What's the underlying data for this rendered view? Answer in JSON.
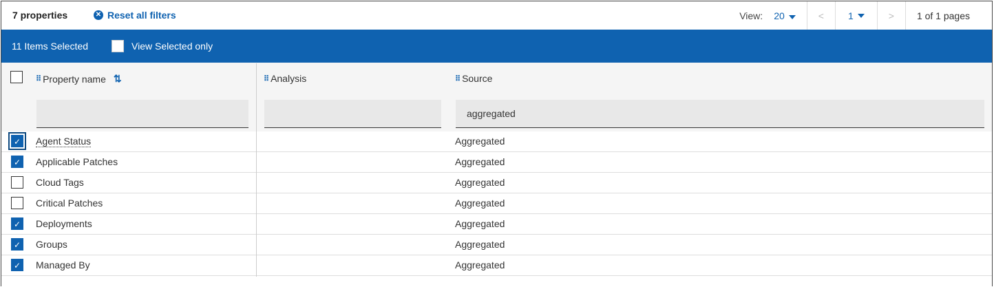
{
  "toolbar": {
    "count": "7 properties",
    "reset": "Reset all filters",
    "view_label": "View:",
    "view_value": "20",
    "page_value": "1",
    "page_info": "1 of 1 pages",
    "prev": "<",
    "next": ">"
  },
  "selection": {
    "count": "11 Items Selected",
    "view_selected": "View Selected only",
    "view_selected_checked": false
  },
  "columns": [
    {
      "label": "Property name",
      "filter": ""
    },
    {
      "label": "Analysis",
      "filter": ""
    },
    {
      "label": "Source",
      "filter": "aggregated"
    }
  ],
  "rows": [
    {
      "name": "Agent Status",
      "source": "Aggregated",
      "checked": true
    },
    {
      "name": "Applicable Patches",
      "source": "Aggregated",
      "checked": true
    },
    {
      "name": "Cloud Tags",
      "source": "Aggregated",
      "checked": false
    },
    {
      "name": "Critical Patches",
      "source": "Aggregated",
      "checked": false
    },
    {
      "name": "Deployments",
      "source": "Aggregated",
      "checked": true
    },
    {
      "name": "Groups",
      "source": "Aggregated",
      "checked": true
    },
    {
      "name": "Managed By",
      "source": "Aggregated",
      "checked": true
    }
  ],
  "colors": {
    "accent": "#0f62b0"
  }
}
